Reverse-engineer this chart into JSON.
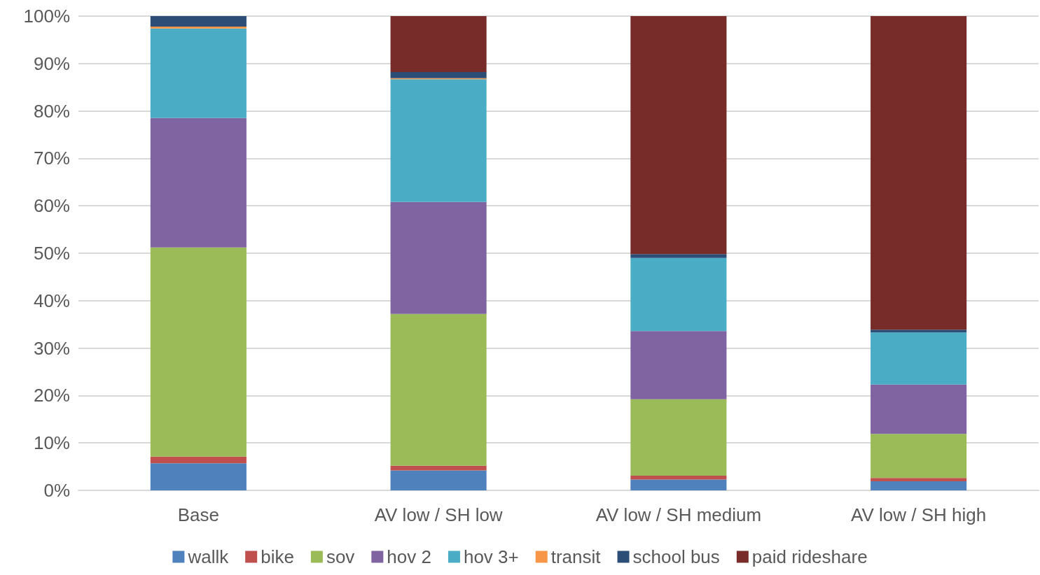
{
  "chart_data": {
    "type": "bar",
    "stacked": true,
    "categories": [
      "Base",
      "AV low / SH low",
      "AV low / SH medium",
      "AV low / SH high"
    ],
    "series": [
      {
        "name": "wallk",
        "color": "#4f81bd",
        "values": [
          5.7,
          4.2,
          2.3,
          1.9
        ]
      },
      {
        "name": "bike",
        "color": "#c0504d",
        "values": [
          1.4,
          1.0,
          0.8,
          0.7
        ]
      },
      {
        "name": "sov",
        "color": "#9bbb59",
        "values": [
          44.1,
          32.0,
          16.1,
          9.3
        ]
      },
      {
        "name": "hov 2",
        "color": "#8064a2",
        "values": [
          27.3,
          23.6,
          14.4,
          10.4
        ]
      },
      {
        "name": "hov 3+",
        "color": "#4bacc6",
        "values": [
          18.9,
          25.9,
          15.4,
          11.0
        ]
      },
      {
        "name": "transit",
        "color": "#f79646",
        "values": [
          0.4,
          0.2,
          0,
          0
        ]
      },
      {
        "name": "school bus",
        "color": "#2c4d75",
        "values": [
          2.2,
          1.3,
          0.8,
          0.6
        ]
      },
      {
        "name": "paid rideshare",
        "color": "#772c2a",
        "values": [
          0,
          11.8,
          50.2,
          66.1
        ]
      }
    ],
    "ylim": [
      0,
      100
    ],
    "yticks": [
      {
        "value": 0,
        "label": "0%"
      },
      {
        "value": 10,
        "label": "10%"
      },
      {
        "value": 20,
        "label": "20%"
      },
      {
        "value": 30,
        "label": "30%"
      },
      {
        "value": 40,
        "label": "40%"
      },
      {
        "value": 50,
        "label": "50%"
      },
      {
        "value": 60,
        "label": "60%"
      },
      {
        "value": 70,
        "label": "70%"
      },
      {
        "value": 80,
        "label": "80%"
      },
      {
        "value": 90,
        "label": "90%"
      },
      {
        "value": 100,
        "label": "100%"
      }
    ],
    "grid": "y",
    "legend": "bottom"
  }
}
